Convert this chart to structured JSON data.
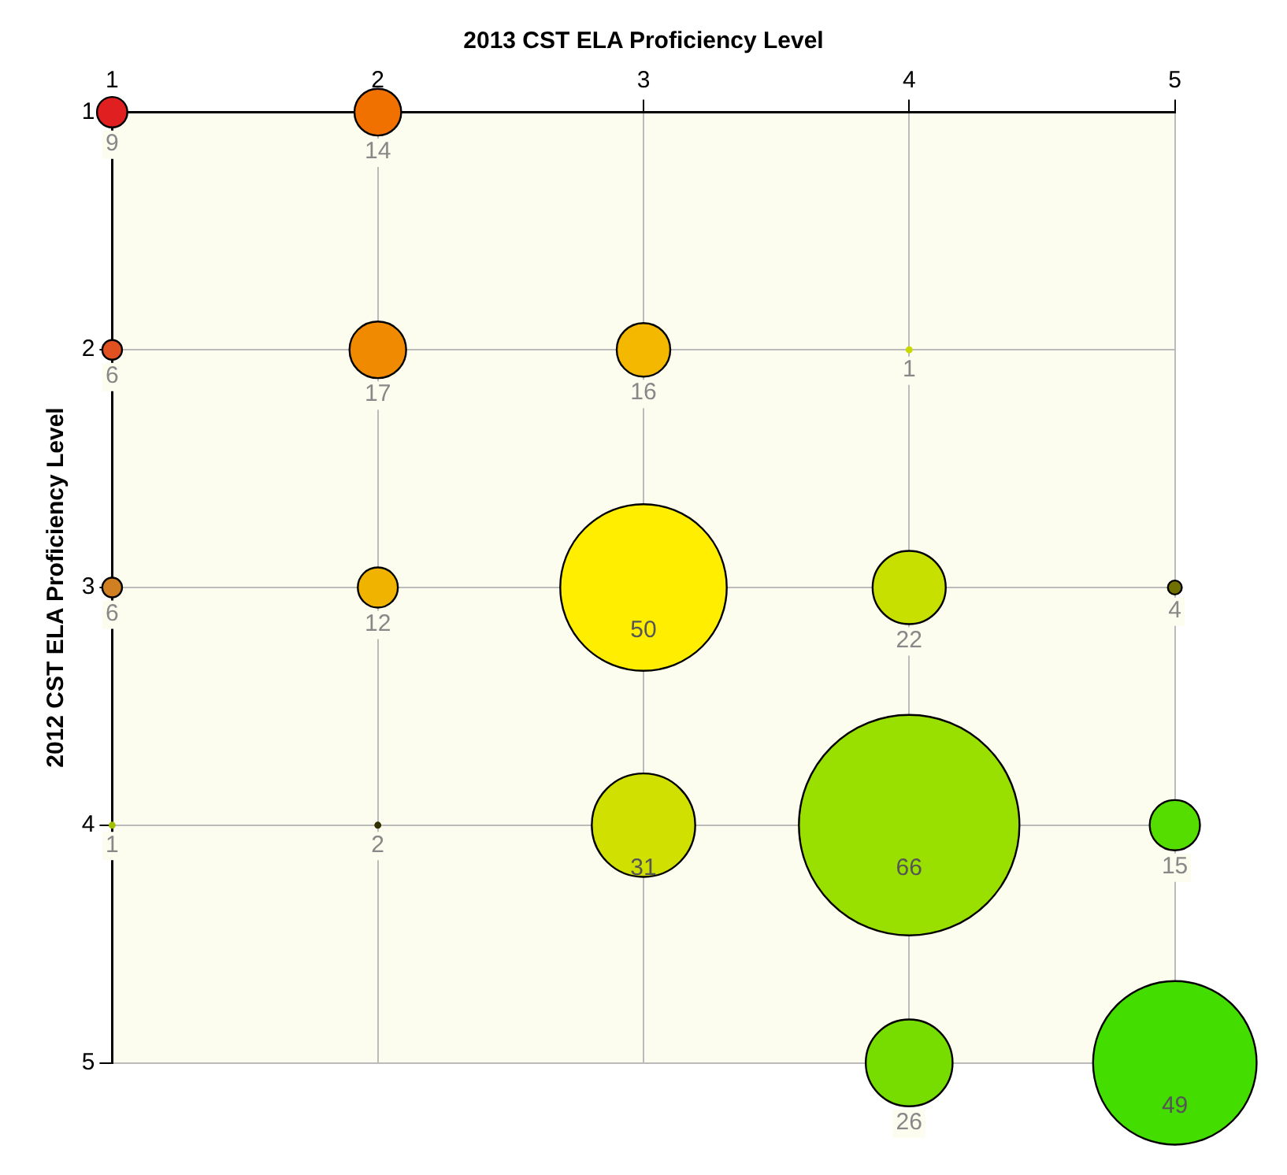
{
  "chart_data": {
    "type": "bubble",
    "xlabel": "2013 CST ELA Proficiency Level",
    "ylabel": "2012 CST ELA Proficiency Level",
    "xlim": [
      1,
      5
    ],
    "xticks": [
      1,
      2,
      3,
      4,
      5
    ],
    "ylim": [
      5,
      1
    ],
    "yticks": [
      1,
      2,
      3,
      4,
      5
    ],
    "grid": true,
    "legend": false,
    "series": [
      {
        "x": [
          1,
          2,
          1,
          2,
          3,
          4,
          1,
          2,
          3,
          4,
          5,
          1,
          2,
          3,
          4,
          5,
          4,
          5
        ],
        "values": [
          1,
          1,
          2,
          2,
          2,
          2,
          3,
          3,
          3,
          3,
          3,
          4,
          4,
          4,
          4,
          4,
          5,
          5
        ],
        "sizes": [
          0.019,
          0.045,
          0.008,
          0.066,
          0.059,
          0.001,
          0.008,
          0.033,
          0.57,
          0.11,
          0.004,
          0.001,
          0.001,
          0.22,
          1,
          0.052,
          0.155,
          0.55
        ],
        "colors": [
          "#e02020",
          "#f07000",
          "#e05020",
          "#f08a00",
          "#f5b800",
          "#c8d800",
          "#d08020",
          "#f0b400",
          "#ffee00",
          "#c8e000",
          "#707000",
          "#a0c000",
          "#303000",
          "#d0e000",
          "#99e000",
          "#55dd00",
          "#77dd00",
          "#44dd00"
        ]
      }
    ],
    "annotations": [
      {
        "text": "9",
        "x": 1,
        "y": 1
      },
      {
        "text": "14",
        "x": 2,
        "y": 1
      },
      {
        "text": "6",
        "x": 1,
        "y": 2
      },
      {
        "text": "17",
        "x": 2,
        "y": 2
      },
      {
        "text": "16",
        "x": 3,
        "y": 2
      },
      {
        "text": "1",
        "x": 4,
        "y": 2
      },
      {
        "text": "6",
        "x": 1,
        "y": 3
      },
      {
        "text": "12",
        "x": 2,
        "y": 3
      },
      {
        "text": "50",
        "x": 3,
        "y": 3
      },
      {
        "text": "22",
        "x": 4,
        "y": 3
      },
      {
        "text": "4",
        "x": 5,
        "y": 3
      },
      {
        "text": "1",
        "x": 1,
        "y": 4
      },
      {
        "text": "2",
        "x": 2,
        "y": 4
      },
      {
        "text": "31",
        "x": 3,
        "y": 4
      },
      {
        "text": "66",
        "x": 4,
        "y": 4
      },
      {
        "text": "15",
        "x": 5,
        "y": 4
      },
      {
        "text": "26",
        "x": 4,
        "y": 5
      },
      {
        "text": "49",
        "x": 5,
        "y": 5
      }
    ]
  }
}
